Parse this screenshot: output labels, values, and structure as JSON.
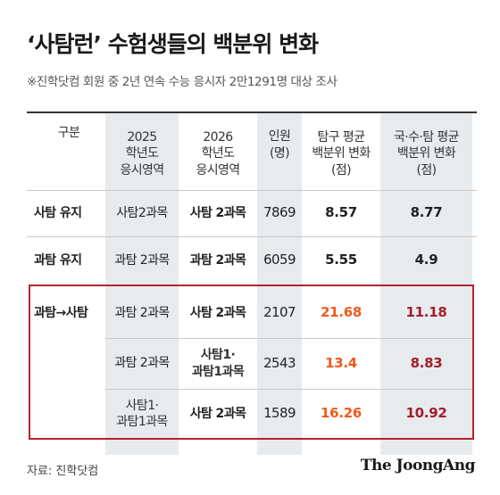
{
  "title": "‘사탐런’ 수험생들의 백분위 변화",
  "subtitle": "※진학닷컴 회원 중 2년 연속 수능 응시자 2만1291명 대상 조사",
  "headers": {
    "c1": "구분",
    "c2": [
      "2025",
      "학년도",
      "응시영역"
    ],
    "c3": [
      "2026",
      "학년도",
      "응시영역"
    ],
    "c4": [
      "인원",
      "(명)"
    ],
    "c5": [
      "탐구 평균",
      "백분위 변화",
      "(점)"
    ],
    "c6": [
      "국·수·탐 평균",
      "백분위 변화",
      "(점)"
    ]
  },
  "rows": [
    {
      "group": "사탐 유지",
      "y2025": "사탐2과목",
      "y2026": "사탐 2과목",
      "people": "7869",
      "inquiry": "8.57",
      "total": "8.77"
    },
    {
      "group": "과탐 유지",
      "y2025": "과탐 2과목",
      "y2026": "과탐 2과목",
      "people": "6059",
      "inquiry": "5.55",
      "total": "4.9"
    },
    {
      "group": "과탐→사탐",
      "y2025": "과탐 2과목",
      "y2026": "사탐 2과목",
      "people": "2107",
      "inquiry": "21.68",
      "total": "11.18"
    },
    {
      "group": "",
      "y2025": "과탐 2과목",
      "y2026": [
        "사탐1·",
        "과탐1과목"
      ],
      "people": "2543",
      "inquiry": "13.4",
      "total": "8.83"
    },
    {
      "group": "",
      "y2025": [
        "사탐1·",
        "과탐1과목"
      ],
      "y2026": "사탐 2과목",
      "people": "1589",
      "inquiry": "16.26",
      "total": "10.92"
    }
  ],
  "source": "자료: 진학닷컴",
  "logo": "The JoongAng",
  "colors": {
    "highlight_orange": "#f2591c",
    "highlight_maroon": "#a31d2a",
    "box_border": "#b3232e",
    "column_shade": "#e8ebee"
  }
}
